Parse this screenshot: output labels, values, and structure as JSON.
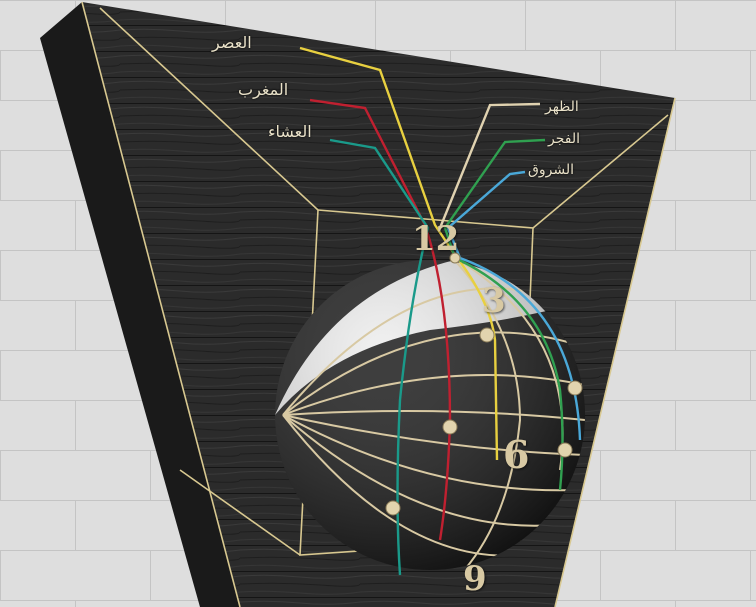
{
  "prayer_labels": {
    "asr": "العصر",
    "maghrib": "المغرب",
    "isha": "العشاء",
    "dhuhr": "الظهر",
    "fajr": "الفجر",
    "shuruq": "الشروق"
  },
  "hour_numerals": {
    "twelve": "12",
    "three": "3",
    "six": "6",
    "nine": "9"
  },
  "colors": {
    "asr_line": "#e8d040",
    "maghrib_line": "#c02030",
    "isha_line": "#1a9a8a",
    "dhuhr_line": "#e0d2b0",
    "fajr_line": "#30a050",
    "shuruq_line": "#4aa8d8",
    "frame_line": "#d8c890",
    "panel_wood": "#2a2a2a",
    "wall": "#dcdcdc"
  }
}
